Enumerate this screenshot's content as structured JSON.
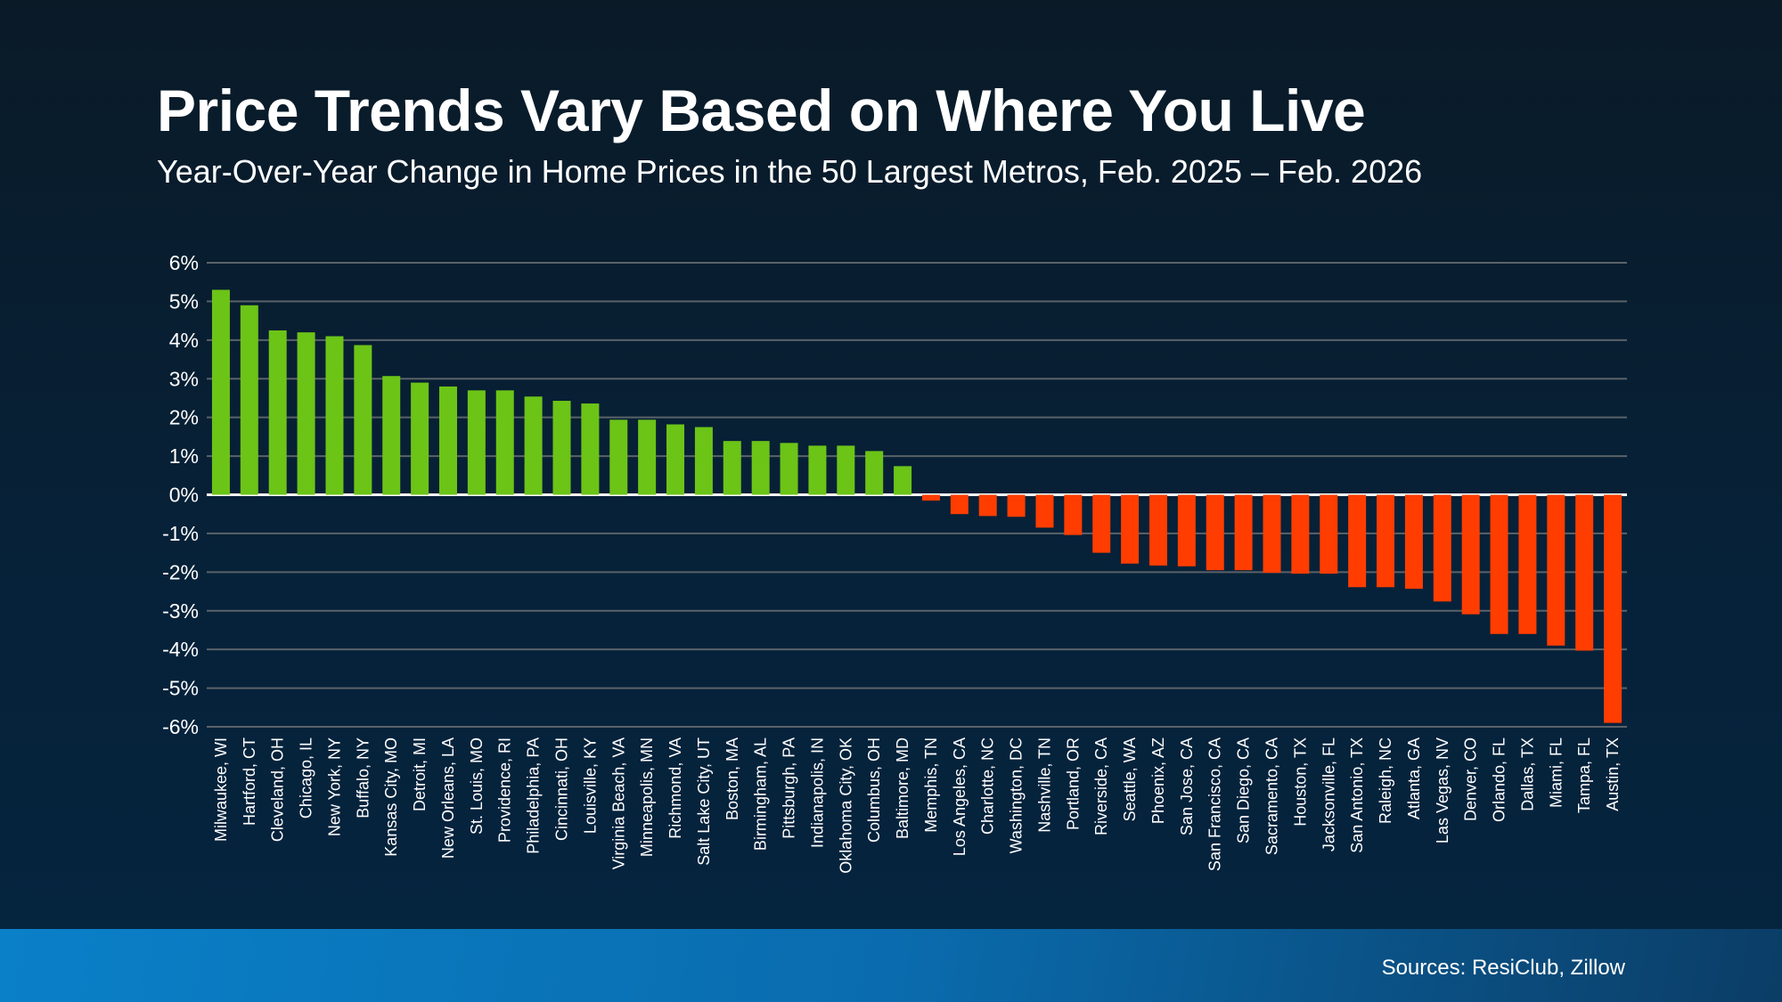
{
  "title": "Price Trends Vary Based on Where You Live",
  "subtitle": "Year-Over-Year Change in Home Prices in the 50 Largest Metros, Feb. 2025 – Feb. 2026",
  "source": "Sources: ResiClub, Zillow",
  "colors": {
    "positive": "#6cc417",
    "negative": "#ff3d00",
    "grid": "#5a6268",
    "zero_line": "#ffffff"
  },
  "chart_data": {
    "type": "bar",
    "title": "",
    "xlabel": "",
    "ylabel": "",
    "ylim": [
      -6,
      6
    ],
    "yticks": [
      "6%",
      "5%",
      "4%",
      "3%",
      "2%",
      "1%",
      "0%",
      "-1%",
      "-2%",
      "-3%",
      "-4%",
      "-5%",
      "-6%"
    ],
    "grid": true,
    "categories": [
      "Milwaukee, WI",
      "Hartford, CT",
      "Cleveland, OH",
      "Chicago, IL",
      "New York, NY",
      "Buffalo, NY",
      "Kansas City, MO",
      "Detroit, MI",
      "New Orleans, LA",
      "St. Louis, MO",
      "Providence, RI",
      "Philadelphia, PA",
      "Cincinnati, OH",
      "Louisville, KY",
      "Virginia Beach, VA",
      "Minneapolis, MN",
      "Richmond, VA",
      "Salt Lake City, UT",
      "Boston, MA",
      "Birmingham, AL",
      "Pittsburgh, PA",
      "Indianapolis, IN",
      "Oklahoma City, OK",
      "Columbus, OH",
      "Baltimore, MD",
      "Memphis, TN",
      "Los Angeles, CA",
      "Charlotte, NC",
      "Washington, DC",
      "Nashville, TN",
      "Portland, OR",
      "Riverside, CA",
      "Seattle, WA",
      "Phoenix, AZ",
      "San Jose, CA",
      "San Francisco, CA",
      "San Diego, CA",
      "Sacramento, CA",
      "Houston, TX",
      "Jacksonville, FL",
      "San Antonio, TX",
      "Raleigh, NC",
      "Atlanta, GA",
      "Las Vegas, NV",
      "Denver, CO",
      "Orlando, FL",
      "Dallas, TX",
      "Miami, FL",
      "Tampa, FL",
      "Austin, TX"
    ],
    "values": [
      5.3,
      4.9,
      4.25,
      4.2,
      4.1,
      3.87,
      3.07,
      2.9,
      2.8,
      2.7,
      2.7,
      2.54,
      2.43,
      2.36,
      1.94,
      1.94,
      1.82,
      1.75,
      1.39,
      1.39,
      1.34,
      1.27,
      1.27,
      1.13,
      0.74,
      -0.15,
      -0.5,
      -0.55,
      -0.57,
      -0.85,
      -1.04,
      -1.5,
      -1.78,
      -1.83,
      -1.85,
      -1.95,
      -1.95,
      -2.02,
      -2.04,
      -2.04,
      -2.39,
      -2.39,
      -2.43,
      -2.76,
      -3.09,
      -3.6,
      -3.6,
      -3.9,
      -4.03,
      -5.9
    ]
  }
}
